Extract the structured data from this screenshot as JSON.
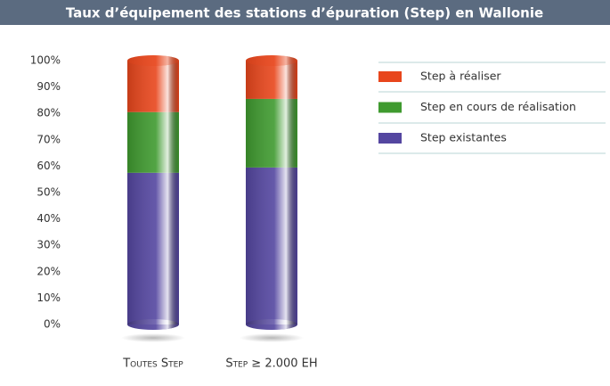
{
  "chart_data": {
    "type": "stacked-bar",
    "title": "Taux d’équipement des stations d’épuration (Step) en Wallonie",
    "categories": [
      "Toutes Step",
      "Step ≥ 2.000 EH"
    ],
    "series": [
      {
        "name": "Step existantes",
        "color": "#5446a0",
        "values": [
          57.5,
          59.5
        ]
      },
      {
        "name": "Step en cours de réalisation",
        "color": "#3f9a2f",
        "values": [
          23,
          26
        ]
      },
      {
        "name": "Step à  réaliser",
        "color": "#e8461c",
        "values": [
          19.5,
          14.5
        ]
      }
    ],
    "ylim": [
      0,
      100
    ],
    "yticks": [
      {
        "value": 0,
        "label": "0%"
      },
      {
        "value": 10,
        "label": "10%"
      },
      {
        "value": 20,
        "label": "20%"
      },
      {
        "value": 30,
        "label": "30%"
      },
      {
        "value": 40,
        "label": "40%"
      },
      {
        "value": 50,
        "label": "50%"
      },
      {
        "value": 60,
        "label": "60%"
      },
      {
        "value": 70,
        "label": "70%"
      },
      {
        "value": 80,
        "label": "80%"
      },
      {
        "value": 90,
        "label": "90%"
      },
      {
        "value": 100,
        "label": "100%"
      }
    ]
  }
}
